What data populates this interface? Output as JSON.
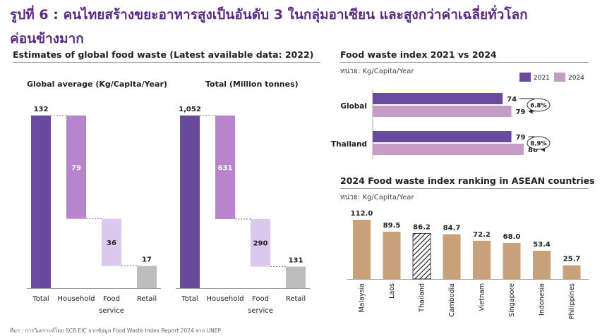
{
  "header": {
    "title_line1": "รูปที่ 6 : คนไทยสร้างขยะอาหารสูงเป็นอันดับ 3 ในกลุ่มอาเซียน และสูงกว่าค่าเฉลี่ยทั่วโลก",
    "title_line2": "ค่อนข้างมาก"
  },
  "left_section": {
    "title": "Estimates of global food waste (Latest available data: 2022)"
  },
  "right_top_section": {
    "title": "Food waste index 2021 vs 2024",
    "unit": "หน่วย: Kg/Capita/Year"
  },
  "right_bottom_section": {
    "title": "2024 Food waste index ranking in ASEAN countries",
    "unit": "หน่วย: Kg/Capita/Year"
  },
  "source": "ที่มา : การวิเคราะห์โดย SCB EIC จากข้อมูล Food Waste Index Report 2024 จาก UNEP",
  "colors": {
    "title": "#5b2a86",
    "total": "#6a4a9c",
    "household": "#b884cc",
    "food_service": "#dcc8ee",
    "retail": "#bdbdbd",
    "y2021": "#6a4a9c",
    "y2024": "#c49cc4",
    "asean": "#c8a07a"
  },
  "chart_data": [
    {
      "type": "bar",
      "subtype": "waterfall",
      "title": "Global average (Kg/Capita/Year)",
      "categories": [
        "Total",
        "Household",
        "Food service",
        "Retail"
      ],
      "values": [
        132,
        79,
        36,
        17
      ],
      "labels": [
        "132",
        "79",
        "36",
        "17"
      ]
    },
    {
      "type": "bar",
      "subtype": "waterfall",
      "title": "Total (Million tonnes)",
      "categories": [
        "Total",
        "Household",
        "Food service",
        "Retail"
      ],
      "values": [
        1052,
        631,
        290,
        131
      ],
      "labels": [
        "1,052",
        "631",
        "290",
        "131"
      ]
    },
    {
      "type": "bar",
      "orientation": "horizontal",
      "categories": [
        "Global",
        "Thailand"
      ],
      "series": [
        {
          "name": "2021",
          "values": [
            74,
            79
          ],
          "labels": [
            "74",
            "79"
          ]
        },
        {
          "name": "2024",
          "values": [
            79,
            86
          ],
          "labels": [
            "79",
            "86"
          ]
        }
      ],
      "annotations": [
        "6.8%",
        "8.9%"
      ],
      "legend": "top-right"
    },
    {
      "type": "bar",
      "categories": [
        "Malaysia",
        "Laos",
        "Thailand",
        "Cambodia",
        "Vietnam",
        "Singapore",
        "Indonesia",
        "Philippines"
      ],
      "values": [
        112.0,
        89.5,
        86.2,
        84.7,
        72.2,
        68.0,
        53.4,
        25.7
      ],
      "labels": [
        "112.0",
        "89.5",
        "86.2",
        "84.7",
        "72.2",
        "68.0",
        "53.4",
        "25.7"
      ],
      "highlight": "Thailand"
    }
  ]
}
